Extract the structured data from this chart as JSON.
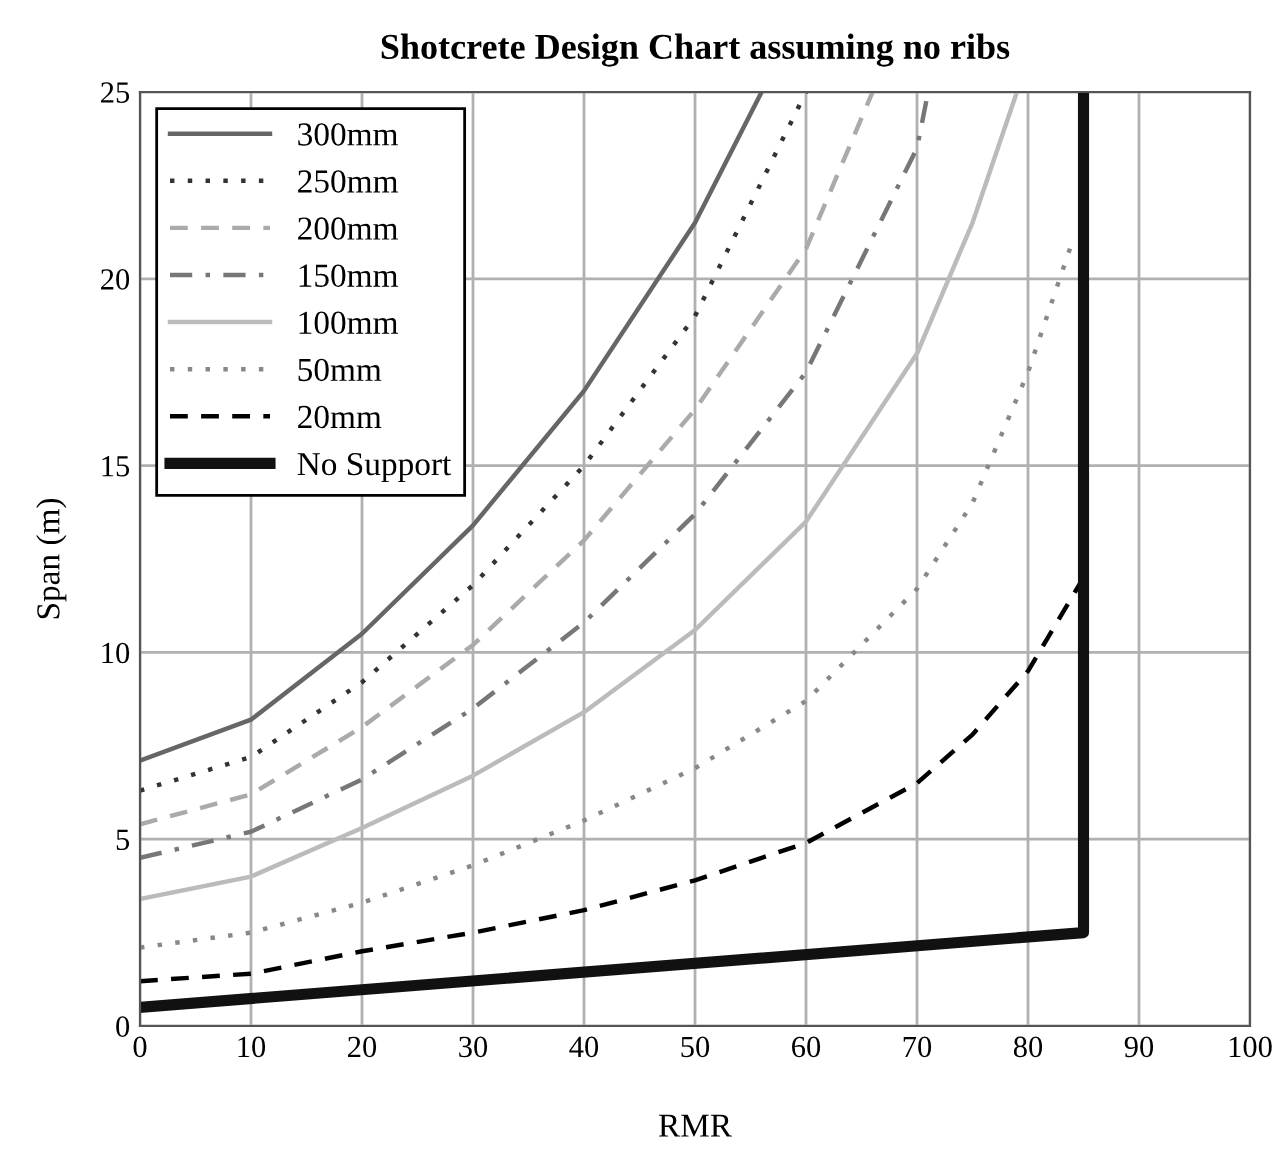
{
  "chart_data": {
    "type": "line",
    "title": "Shotcrete Design Chart assuming no ribs",
    "xlabel": "RMR",
    "ylabel": "Span (m)",
    "xlim": [
      0,
      100
    ],
    "xticks": [
      0,
      10,
      20,
      30,
      40,
      50,
      60,
      70,
      80,
      90,
      100
    ],
    "ylim": [
      0,
      25
    ],
    "yticks": [
      0,
      5,
      10,
      15,
      20,
      25
    ],
    "grid": true,
    "legend": "top left",
    "series": [
      {
        "name": "300mm",
        "color": "#666666",
        "line_style": "solid",
        "x": [
          0,
          10,
          20,
          30,
          40,
          50,
          56
        ],
        "values": [
          7.1,
          8.2,
          10.5,
          13.4,
          17.0,
          21.5,
          25
        ]
      },
      {
        "name": "250mm",
        "color": "#333333",
        "line_style": "dotted",
        "x": [
          0,
          10,
          20,
          30,
          40,
          50,
          60
        ],
        "values": [
          6.3,
          7.2,
          9.2,
          11.8,
          15,
          19,
          25
        ]
      },
      {
        "name": "200mm",
        "color": "#aaaaaa",
        "line_style": "dashed",
        "x": [
          0,
          10,
          20,
          30,
          40,
          50,
          60,
          66
        ],
        "values": [
          5.4,
          6.2,
          8,
          10.2,
          13,
          16.5,
          20.8,
          25
        ]
      },
      {
        "name": "150mm",
        "color": "#777777",
        "line_style": "dashdot",
        "x": [
          0,
          10,
          20,
          30,
          40,
          50,
          60,
          70,
          71
        ],
        "values": [
          4.5,
          5.2,
          6.6,
          8.5,
          10.8,
          13.7,
          17.5,
          23.5,
          25
        ]
      },
      {
        "name": "100mm",
        "color": "#bbbbbb",
        "line_style": "solid",
        "x": [
          0,
          10,
          20,
          30,
          40,
          50,
          60,
          70,
          75,
          79
        ],
        "values": [
          3.4,
          4.0,
          5.3,
          6.7,
          8.4,
          10.6,
          13.5,
          18,
          21.5,
          25
        ]
      },
      {
        "name": "50mm",
        "color": "#888888",
        "line_style": "dotted",
        "x": [
          0,
          10,
          20,
          30,
          40,
          50,
          60,
          70,
          75,
          80,
          84
        ],
        "values": [
          2.1,
          2.5,
          3.3,
          4.3,
          5.5,
          6.9,
          8.7,
          11.7,
          14,
          17.5,
          21
        ]
      },
      {
        "name": "20mm",
        "color": "#000000",
        "line_style": "dashed",
        "x": [
          0,
          10,
          20,
          30,
          40,
          50,
          60,
          70,
          75,
          80,
          85
        ],
        "values": [
          1.2,
          1.4,
          2.0,
          2.5,
          3.1,
          3.9,
          4.9,
          6.5,
          7.8,
          9.5,
          12
        ]
      },
      {
        "name": "No Support",
        "color": "#111111",
        "line_style": "solid",
        "x": [
          0,
          85,
          85
        ],
        "values": [
          0.5,
          2.5,
          25
        ]
      }
    ]
  }
}
